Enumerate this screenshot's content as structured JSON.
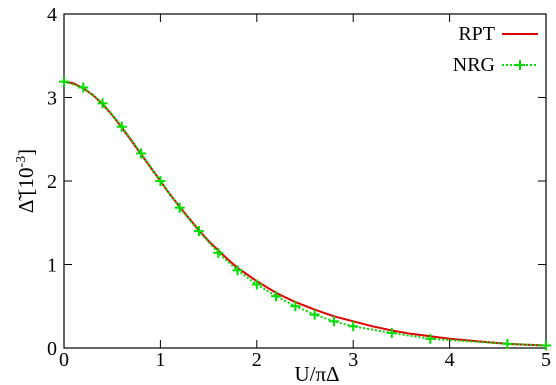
{
  "chart_data": {
    "type": "line",
    "xlabel": "U/πΔ",
    "ylabel_main": "Δ̃ [10",
    "ylabel_exp": "-3",
    "ylabel_close": "]",
    "xlim": [
      0,
      5
    ],
    "ylim": [
      0,
      4
    ],
    "xticks": [
      0,
      1,
      2,
      3,
      4,
      5
    ],
    "yticks": [
      0,
      1,
      2,
      3,
      4
    ],
    "grid": false,
    "legend_position": "top-right",
    "series": [
      {
        "name": "RPT",
        "color": "#e00000",
        "style": "solid",
        "x": [
          0,
          0.1,
          0.2,
          0.3,
          0.4,
          0.5,
          0.6,
          0.7,
          0.8,
          0.9,
          1.0,
          1.1,
          1.2,
          1.3,
          1.4,
          1.5,
          1.6,
          1.7,
          1.8,
          1.9,
          2.0,
          2.2,
          2.4,
          2.6,
          2.8,
          3.0,
          3.2,
          3.4,
          3.6,
          3.8,
          4.0,
          4.2,
          4.4,
          4.6,
          4.8,
          5.0
        ],
        "y": [
          3.19,
          3.17,
          3.11,
          3.03,
          2.92,
          2.79,
          2.64,
          2.48,
          2.32,
          2.16,
          2.0,
          1.84,
          1.69,
          1.55,
          1.41,
          1.28,
          1.17,
          1.06,
          0.96,
          0.88,
          0.8,
          0.66,
          0.55,
          0.46,
          0.38,
          0.32,
          0.26,
          0.21,
          0.17,
          0.14,
          0.11,
          0.09,
          0.07,
          0.05,
          0.04,
          0.03
        ]
      },
      {
        "name": "NRG",
        "color": "#00dd00",
        "style": "dotted",
        "x": [
          0,
          0.2,
          0.4,
          0.6,
          0.8,
          1.0,
          1.2,
          1.4,
          1.6,
          1.8,
          2.0,
          2.2,
          2.4,
          2.6,
          2.8,
          3.0,
          3.4,
          3.8,
          4.6,
          5.0
        ],
        "y": [
          3.19,
          3.12,
          2.93,
          2.65,
          2.33,
          2.0,
          1.68,
          1.4,
          1.14,
          0.93,
          0.76,
          0.62,
          0.5,
          0.4,
          0.32,
          0.26,
          0.18,
          0.11,
          0.05,
          0.03
        ]
      }
    ]
  }
}
